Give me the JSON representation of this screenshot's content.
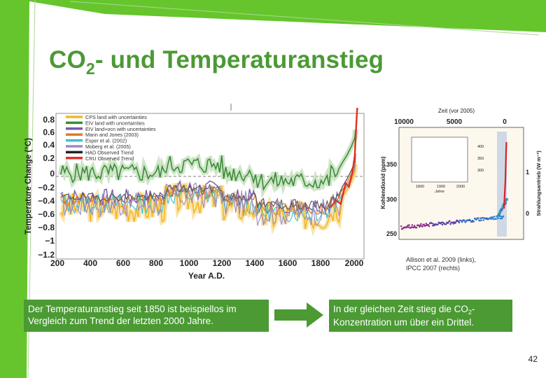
{
  "slide": {
    "title_prefix": "CO",
    "title_subscript": "2",
    "title_suffix": "- und Temperaturanstieg",
    "page_number": "42",
    "colors": {
      "accent_green": "#4b9a34",
      "bright_green": "#66c52d"
    }
  },
  "left_figure": {
    "ylabel": "Temperature Change (°C)",
    "xlabel": "Year A.D.",
    "y_ticks": [
      "0.8",
      "0.6",
      "0.4",
      "0.2",
      "0",
      "−0.2",
      "−0.4",
      "−0.6",
      "−0.8",
      "−1",
      "−1.2"
    ],
    "x_ticks": [
      "200",
      "400",
      "600",
      "800",
      "1000",
      "1200",
      "1400",
      "1600",
      "1800",
      "2000"
    ],
    "legend": [
      {
        "label": "CPS land with uncertainties",
        "color": "#f5b623"
      },
      {
        "label": "EIV land with uncertainties",
        "color": "#3d8a3a"
      },
      {
        "label": "EIV land+ocn with uncertainties",
        "color": "#7a5aa6"
      },
      {
        "label": "Mann and Jones (2003)",
        "color": "#e07d20"
      },
      {
        "label": "Esper et al. (2002)",
        "color": "#40c0c8"
      },
      {
        "label": "Moberg et al. (2005)",
        "color": "#9b8ac8"
      },
      {
        "label": "HAD Observed Trend",
        "color": "#222222"
      },
      {
        "label": "CRU Observed Trend",
        "color": "#e03020"
      }
    ]
  },
  "right_figure": {
    "top_label": "Zeit (vor 2005)",
    "x_ticks": [
      "10000",
      "5000",
      "0"
    ],
    "y_left_label": "Kohlendioxid (ppm)",
    "y_left_ticks": [
      "350",
      "300",
      "250"
    ],
    "y_right_label": "Strahlungsantrieb (W m⁻²)",
    "y_right_ticks": [
      "1",
      "0"
    ],
    "inset_y_ticks": [
      "400",
      "350",
      "300"
    ],
    "inset_x_ticks": [
      "1800",
      "1900",
      "2000"
    ],
    "inset_xlabel": "Jahre"
  },
  "caption": {
    "line1": "Allison et al. 2009 (links),",
    "line2": "IPCC 2007 (rechts)"
  },
  "box_left": {
    "text": "Der Temperaturanstieg seit 1850 ist beispiellos im Vergleich zum Trend der letzten 2000 Jahre."
  },
  "box_right": {
    "text_prefix": "In der gleichen Zeit stieg die CO",
    "text_subscript": "2",
    "text_suffix": "-Konzentration um über ein Drittel."
  }
}
